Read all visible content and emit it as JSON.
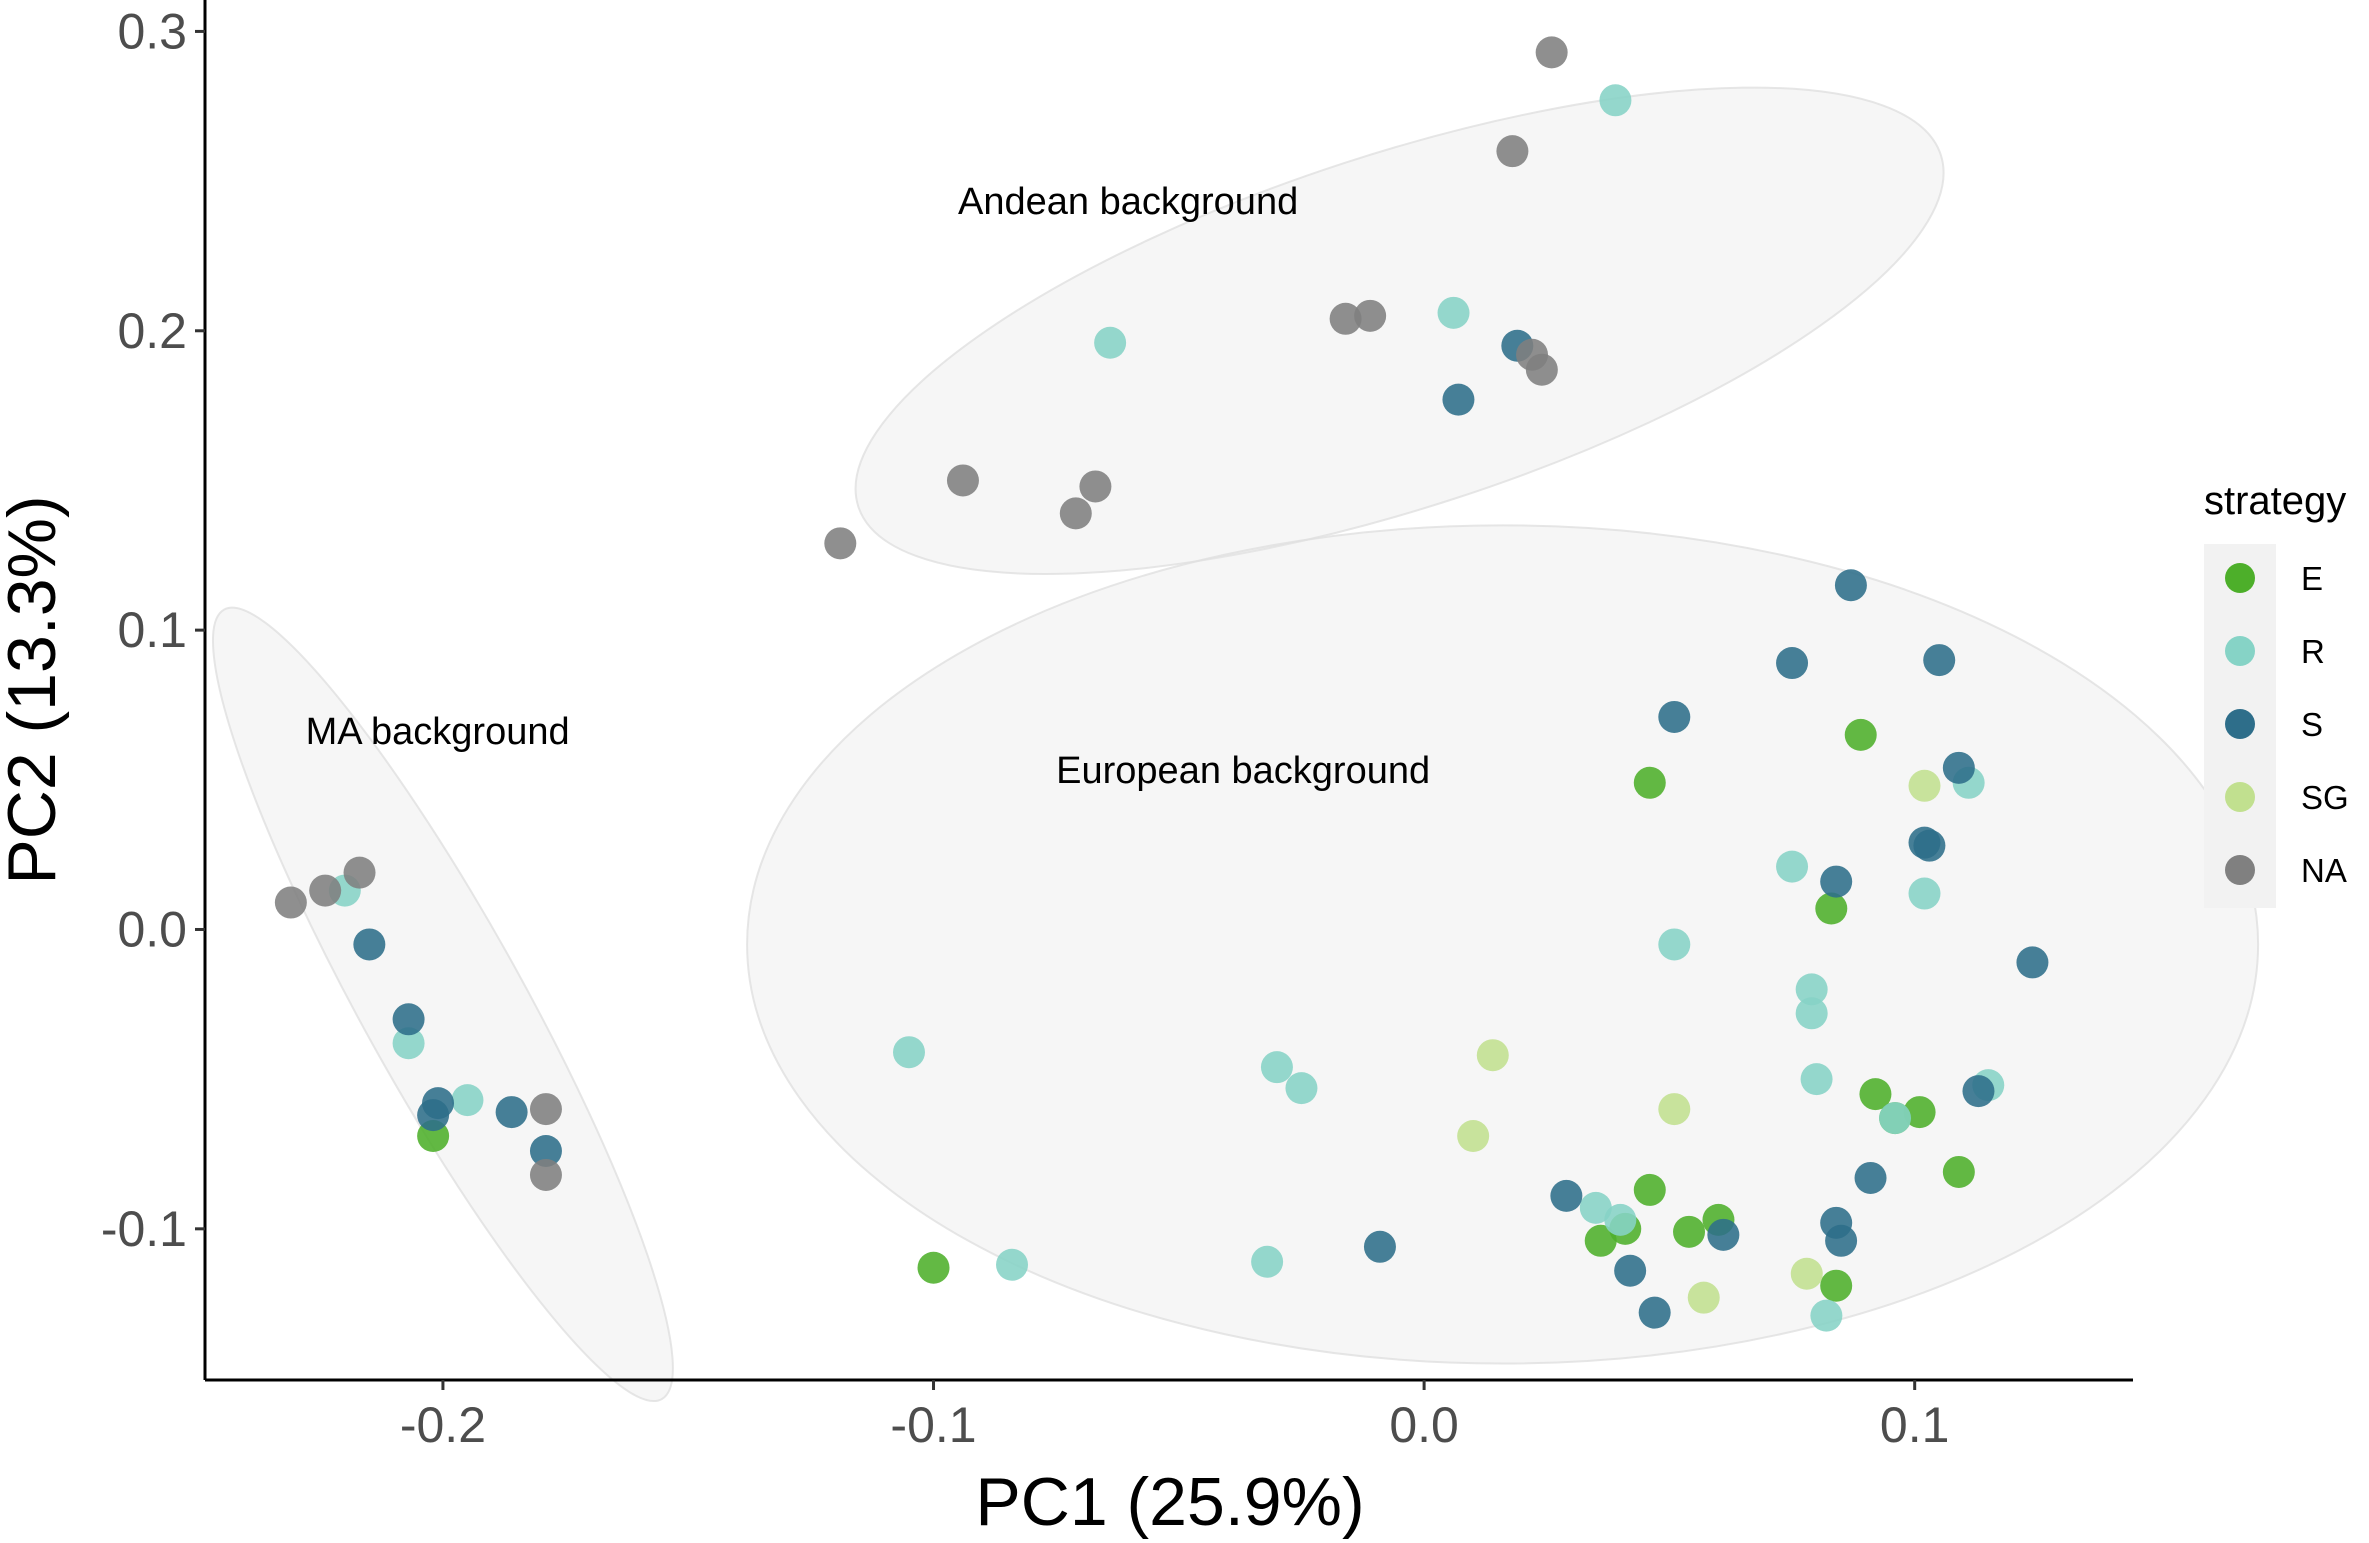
{
  "chart_data": {
    "type": "scatter",
    "title": "",
    "xlabel": "PC1 (25.9%)",
    "ylabel": "PC2 (13.3%)",
    "xlim": [
      -0.2485,
      0.1445
    ],
    "ylim": [
      -0.1505,
      0.3105
    ],
    "xticks": [
      -0.2,
      -0.1,
      0.0,
      0.1
    ],
    "xtick_labels": [
      "-0.2",
      "-0.1",
      "0.0",
      "0.1"
    ],
    "yticks": [
      -0.1,
      0.0,
      0.1,
      0.2,
      0.3
    ],
    "ytick_labels": [
      "-0.1",
      "0.0",
      "0.1",
      "0.2",
      "0.3"
    ],
    "grid": false,
    "legend": {
      "title": "strategy",
      "position": "right",
      "entries": [
        {
          "name": "E",
          "color": "#4daf2a"
        },
        {
          "name": "R",
          "color": "#86d3c6"
        },
        {
          "name": "S",
          "color": "#2e6e8a"
        },
        {
          "name": "SG",
          "color": "#c1e08f"
        },
        {
          "name": "NA",
          "color": "#808080"
        }
      ]
    },
    "ellipses": [
      {
        "label": "Andean background",
        "cx": -0.005,
        "cy": 0.2,
        "rx": 0.116,
        "ry": 0.059,
        "angle_deg": -18
      },
      {
        "label": "European background",
        "cx": 0.016,
        "cy": -0.005,
        "rx": 0.154,
        "ry": 0.14,
        "angle_deg": 0
      },
      {
        "label": "MA background",
        "cx": -0.2,
        "cy": -0.025,
        "rx": 0.092,
        "ry": 0.027,
        "angle_deg": 61
      }
    ],
    "annotations": [
      {
        "text": "Andean background",
        "x": -0.095,
        "y": 0.239
      },
      {
        "text": "European background",
        "x": -0.075,
        "y": 0.049
      },
      {
        "text": "MA background",
        "x": -0.228,
        "y": 0.062
      }
    ],
    "series": [
      {
        "name": "E",
        "color": "#4daf2a",
        "points": [
          [
            -0.202,
            -0.069
          ],
          [
            -0.1,
            -0.113
          ],
          [
            0.036,
            -0.104
          ],
          [
            0.041,
            -0.1
          ],
          [
            0.046,
            -0.087
          ],
          [
            0.046,
            0.049
          ],
          [
            0.054,
            -0.101
          ],
          [
            0.06,
            -0.097
          ],
          [
            0.083,
            0.007
          ],
          [
            0.084,
            -0.119
          ],
          [
            0.089,
            0.065
          ],
          [
            0.092,
            -0.055
          ],
          [
            0.096,
            -0.063
          ],
          [
            0.101,
            -0.061
          ],
          [
            0.109,
            -0.081
          ]
        ]
      },
      {
        "name": "R",
        "color": "#86d3c6",
        "points": [
          [
            -0.22,
            0.013
          ],
          [
            -0.207,
            -0.038
          ],
          [
            -0.195,
            -0.057
          ],
          [
            -0.105,
            -0.041
          ],
          [
            -0.084,
            -0.112
          ],
          [
            -0.064,
            0.196
          ],
          [
            -0.03,
            -0.046
          ],
          [
            -0.025,
            -0.053
          ],
          [
            -0.032,
            -0.111
          ],
          [
            0.006,
            0.206
          ],
          [
            0.035,
            -0.093
          ],
          [
            0.04,
            -0.097
          ],
          [
            0.039,
            0.277
          ],
          [
            0.051,
            -0.005
          ],
          [
            0.075,
            0.021
          ],
          [
            0.079,
            -0.02
          ],
          [
            0.079,
            -0.028
          ],
          [
            0.08,
            -0.05
          ],
          [
            0.082,
            -0.129
          ],
          [
            0.096,
            -0.063
          ],
          [
            0.102,
            0.012
          ],
          [
            0.111,
            0.049
          ],
          [
            0.115,
            -0.052
          ]
        ]
      },
      {
        "name": "S",
        "color": "#2e6e8a",
        "points": [
          [
            -0.215,
            -0.005
          ],
          [
            -0.207,
            -0.03
          ],
          [
            -0.201,
            -0.058
          ],
          [
            -0.202,
            -0.062
          ],
          [
            -0.186,
            -0.061
          ],
          [
            -0.179,
            -0.074
          ],
          [
            -0.009,
            -0.106
          ],
          [
            0.007,
            0.177
          ],
          [
            0.019,
            0.195
          ],
          [
            0.029,
            -0.089
          ],
          [
            0.042,
            -0.114
          ],
          [
            0.047,
            -0.128
          ],
          [
            0.051,
            0.071
          ],
          [
            0.061,
            -0.102
          ],
          [
            0.075,
            0.089
          ],
          [
            0.084,
            0.016
          ],
          [
            0.084,
            -0.098
          ],
          [
            0.085,
            -0.104
          ],
          [
            0.087,
            0.115
          ],
          [
            0.091,
            -0.083
          ],
          [
            0.102,
            0.029
          ],
          [
            0.103,
            0.028
          ],
          [
            0.105,
            0.09
          ],
          [
            0.109,
            0.054
          ],
          [
            0.113,
            -0.054
          ],
          [
            0.124,
            -0.011
          ]
        ]
      },
      {
        "name": "SG",
        "color": "#c1e08f",
        "points": [
          [
            0.01,
            -0.069
          ],
          [
            0.014,
            -0.042
          ],
          [
            0.051,
            -0.06
          ],
          [
            0.057,
            -0.123
          ],
          [
            0.078,
            -0.115
          ],
          [
            0.102,
            0.048
          ]
        ]
      },
      {
        "name": "NA",
        "color": "#808080",
        "points": [
          [
            -0.231,
            0.009
          ],
          [
            -0.224,
            0.013
          ],
          [
            -0.217,
            0.019
          ],
          [
            -0.179,
            -0.06
          ],
          [
            -0.179,
            -0.082
          ],
          [
            -0.119,
            0.129
          ],
          [
            -0.094,
            0.15
          ],
          [
            -0.071,
            0.139
          ],
          [
            -0.067,
            0.148
          ],
          [
            -0.016,
            0.204
          ],
          [
            -0.011,
            0.205
          ],
          [
            0.018,
            0.26
          ],
          [
            0.022,
            0.192
          ],
          [
            0.024,
            0.187
          ],
          [
            0.026,
            0.293
          ]
        ]
      }
    ]
  }
}
